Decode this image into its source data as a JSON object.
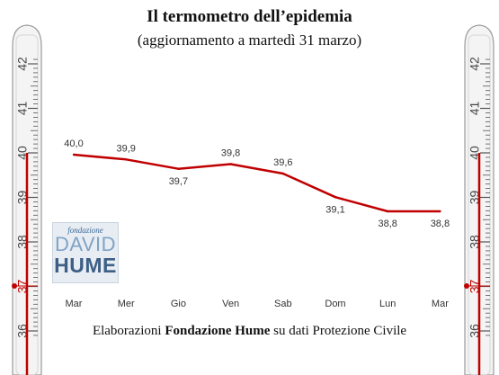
{
  "header": {
    "title": "Il termometro dell’epidemia",
    "subtitle": "(aggiornamento a martedì 31 marzo)"
  },
  "thermometer": {
    "scale_labels": [
      "42",
      "41",
      "40",
      "39",
      "38",
      "37",
      "36"
    ],
    "line_color": "#c00000"
  },
  "logo": {
    "line1": "fondazione",
    "line2": "DAVID",
    "line3": "HUME"
  },
  "source": {
    "prefix": "Elaborazioni ",
    "org": "Fondazione Hume",
    "suffix": " su dati Protezione Civile"
  },
  "chart_data": {
    "type": "line",
    "categories": [
      "Mar",
      "Mer",
      "Gio",
      "Ven",
      "Sab",
      "Dom",
      "Lun",
      "Mar"
    ],
    "values": [
      40.0,
      39.9,
      39.7,
      39.8,
      39.6,
      39.1,
      38.8,
      38.8
    ],
    "labels": [
      "40,0",
      "39,9",
      "39,7",
      "39,8",
      "39,6",
      "39,1",
      "38,8",
      "38,8"
    ],
    "line_color": "#c00000",
    "grid": false,
    "legend": "none"
  }
}
